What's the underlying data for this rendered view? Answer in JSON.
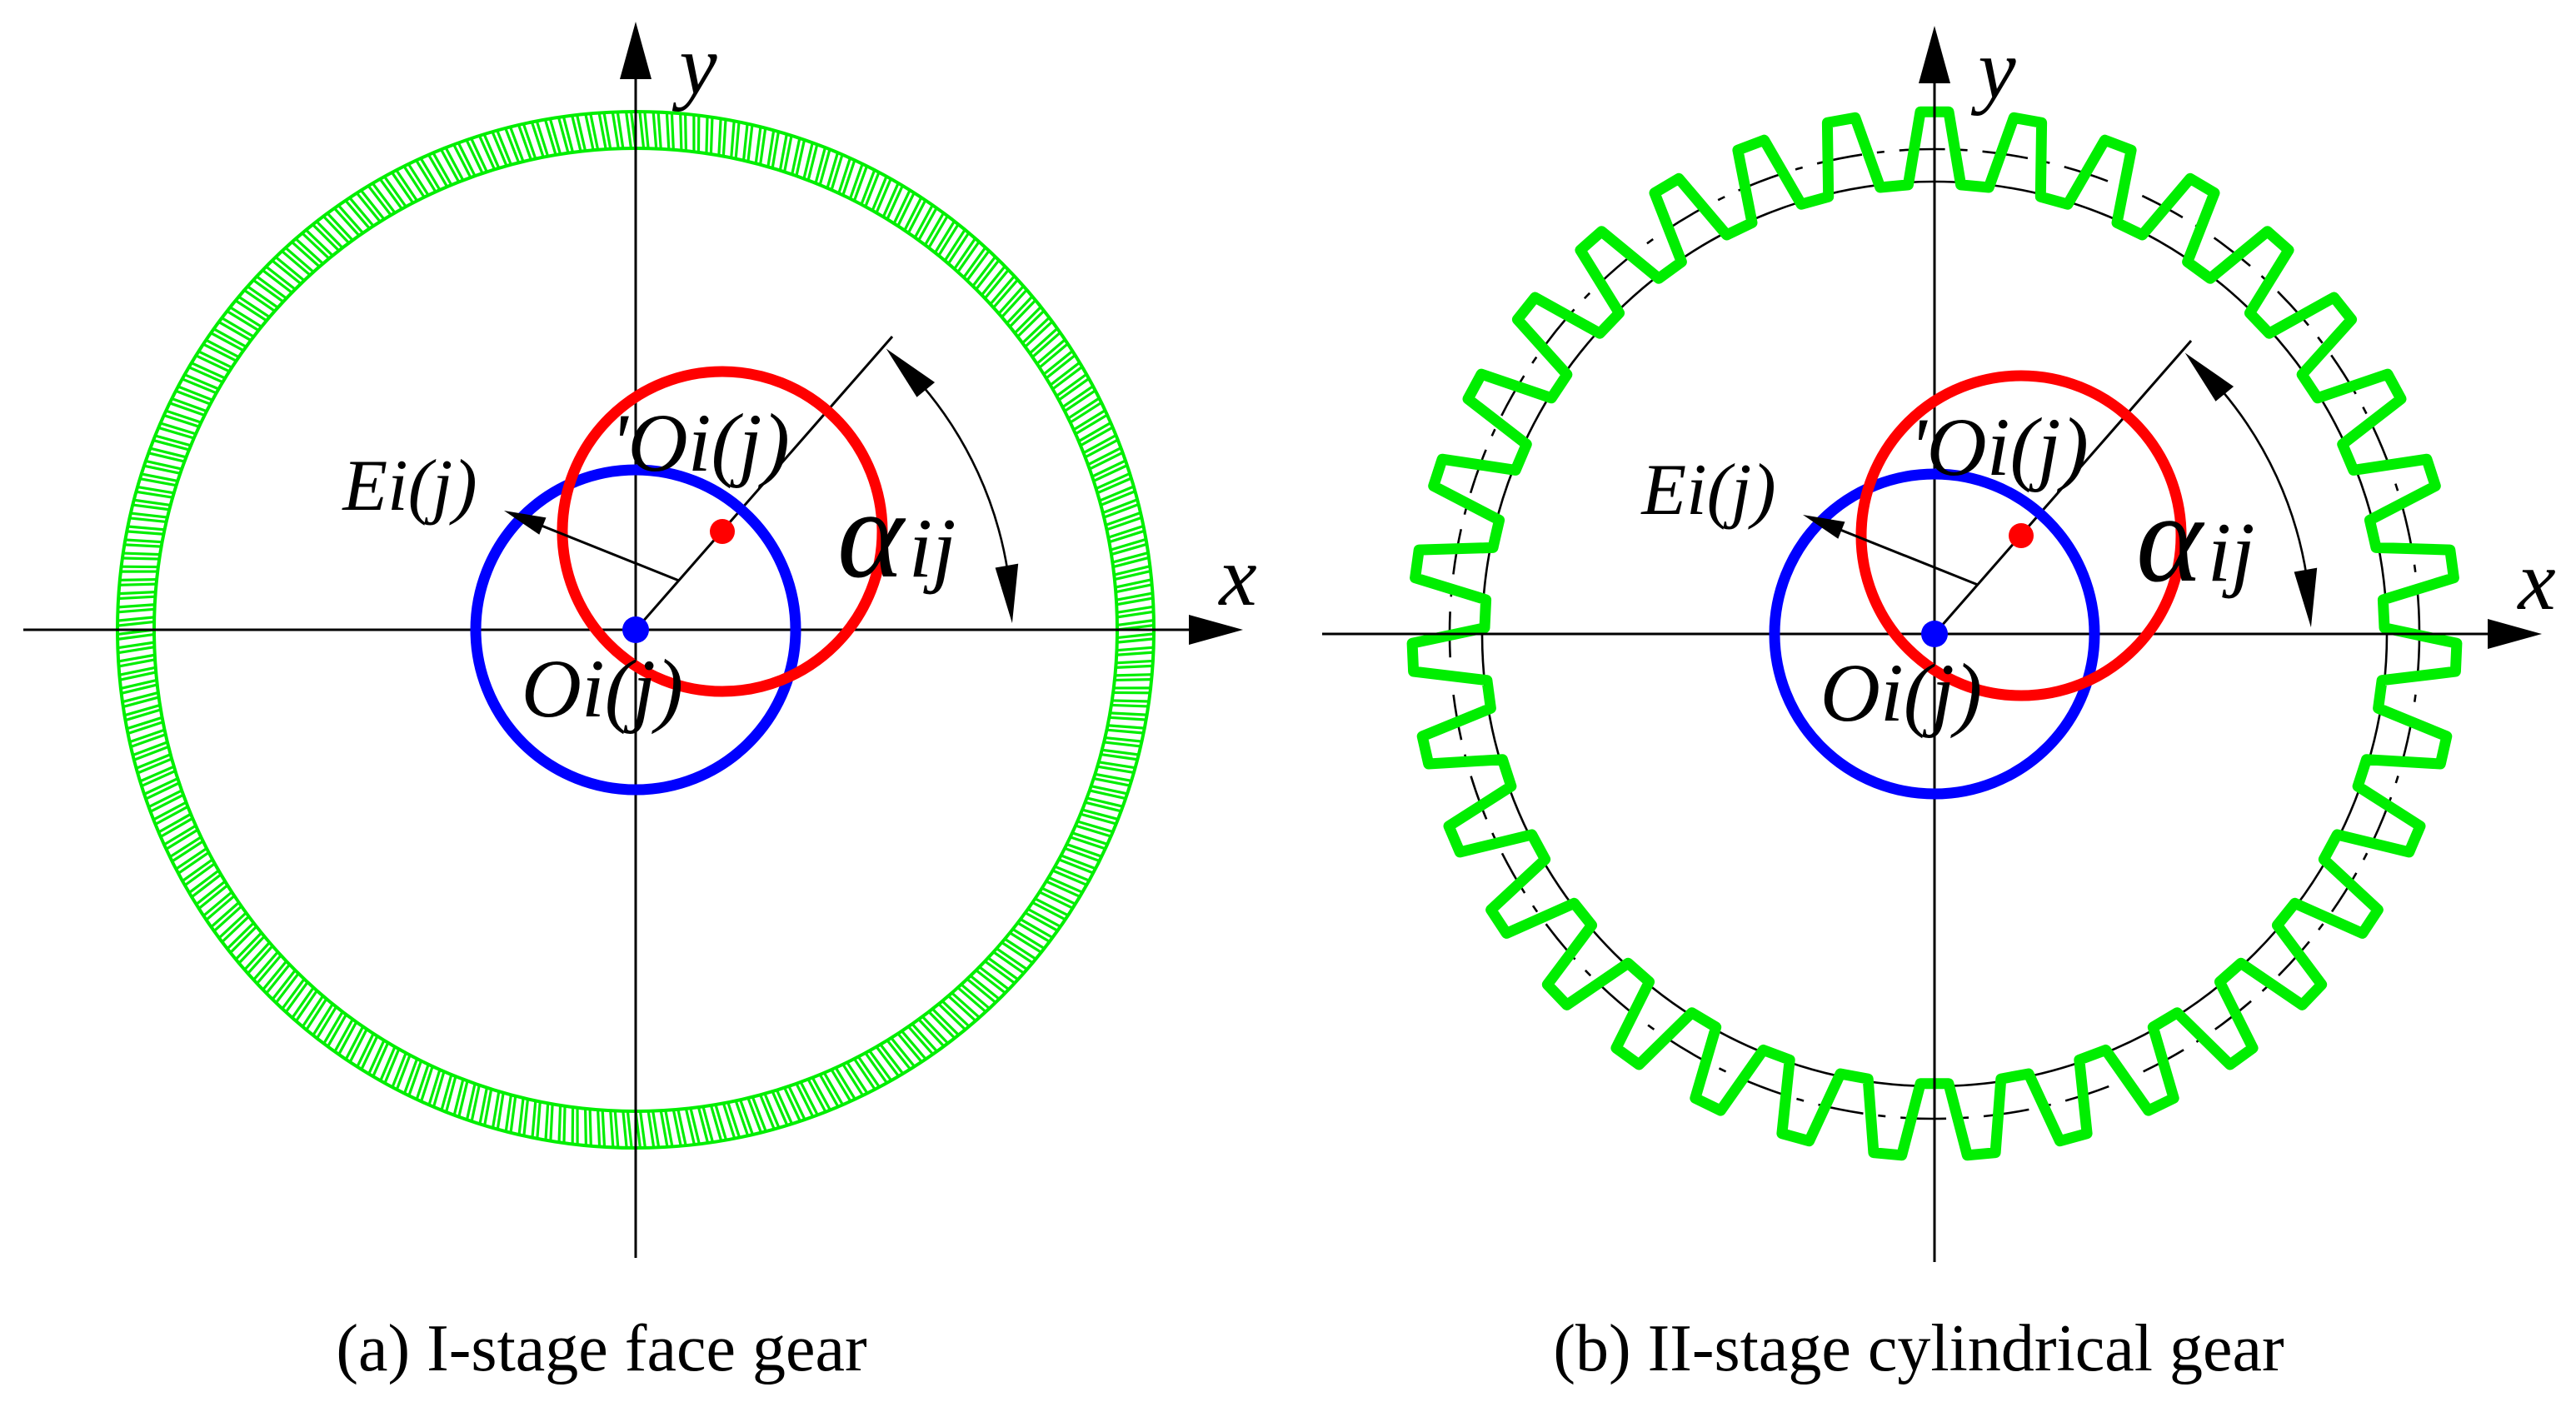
{
  "figure": {
    "colors": {
      "gear_green": "#00ee00",
      "circle_red": "#ff0000",
      "circle_blue": "#0000ff",
      "ink_black": "#000000",
      "background": "#ffffff"
    },
    "panels": [
      {
        "id": "a",
        "caption": "(a) I-stage face gear",
        "labels": {
          "x_axis": "x",
          "y_axis": "y",
          "geometric_center": "Oi(j)",
          "rotation_center": "'Oi(j)",
          "eccentricity": "Ei(j)",
          "phase_angle_alpha": "α",
          "phase_angle_subscript": "ij"
        },
        "gear": {
          "kind": "face gear ring",
          "teeth": 240
        }
      },
      {
        "id": "b",
        "caption": "(b) II-stage cylindrical gear",
        "labels": {
          "x_axis": "x",
          "y_axis": "y",
          "geometric_center": "Oi(j)",
          "rotation_center": "'Oi(j)",
          "eccentricity": "Ei(j)",
          "phase_angle_alpha": "α",
          "phase_angle_subscript": "ij"
        },
        "gear": {
          "kind": "cylindrical gear",
          "teeth": 35
        }
      }
    ]
  }
}
